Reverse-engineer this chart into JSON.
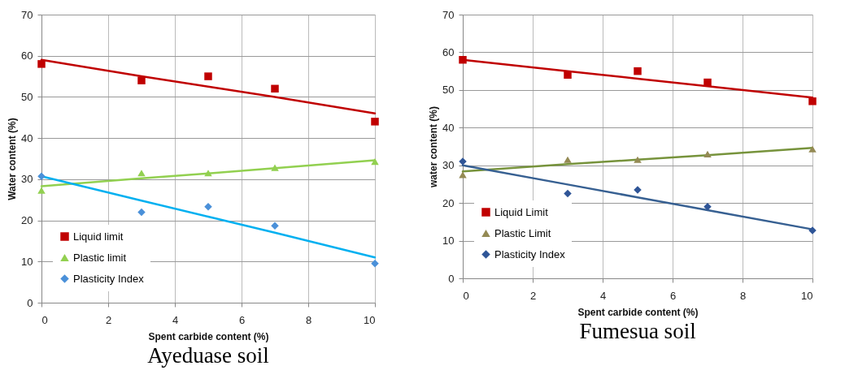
{
  "chart_data": [
    {
      "type": "scatter",
      "title": "Ayeduase soil",
      "xlabel": "Spent carbide content (%)",
      "ylabel": "Water content (%)",
      "x": [
        0,
        3,
        5,
        7,
        10
      ],
      "xlim": [
        0,
        10
      ],
      "xticks": [
        0,
        2,
        4,
        6,
        8,
        10
      ],
      "ylim": [
        0,
        70
      ],
      "yticks": [
        0,
        10,
        20,
        30,
        40,
        50,
        60,
        70
      ],
      "grid": true,
      "legend": "bottom left",
      "series": [
        {
          "name": "Liquid limit",
          "marker": "square",
          "color": "#c00000",
          "values": [
            58,
            54,
            55,
            52,
            44
          ]
        },
        {
          "name": "Plastic limit",
          "marker": "triangle",
          "color": "#92d050",
          "values": [
            27.3,
            31.5,
            31.5,
            32.8,
            34.3
          ]
        },
        {
          "name": "Plasticity Index",
          "marker": "diamond",
          "color": "#4a90d9",
          "values": [
            30.7,
            22,
            23.3,
            18.7,
            9.5
          ]
        },
        {
          "type": "line",
          "marker": "none",
          "color": "#c00000",
          "values": [
            59,
            55,
            52.5,
            50,
            46
          ]
        },
        {
          "type": "line",
          "marker": "none",
          "color": "#92d050",
          "values": [
            28.3,
            30.2,
            31.4,
            32.7,
            34.6
          ]
        },
        {
          "type": "line",
          "marker": "none",
          "color": "#00b0f0",
          "values": [
            30.7,
            24.8,
            20.9,
            17,
            11
          ]
        }
      ]
    },
    {
      "type": "scatter",
      "title": "Fumesua soil",
      "xlabel": "Spent carbide content (%)",
      "ylabel": "water  content (%)",
      "x": [
        0,
        3,
        5,
        7,
        10
      ],
      "xlim": [
        0,
        10
      ],
      "xticks": [
        0,
        2,
        4,
        6,
        8,
        10
      ],
      "ylim": [
        0,
        70
      ],
      "yticks": [
        0,
        10,
        20,
        30,
        40,
        50,
        60,
        70
      ],
      "grid": true,
      "legend": "bottom left",
      "series": [
        {
          "name": "Liquid Limit",
          "marker": "square",
          "color": "#c00000",
          "values": [
            58,
            54,
            55,
            52,
            47
          ]
        },
        {
          "name": "Plastic Limit",
          "marker": "triangle",
          "color": "#948a54",
          "values": [
            27.5,
            31.5,
            31.5,
            33,
            34.3
          ]
        },
        {
          "name": "Plasticity Index",
          "marker": "diamond",
          "color": "#2f5597",
          "values": [
            31,
            22.5,
            23.5,
            19,
            12.7
          ]
        },
        {
          "type": "line",
          "marker": "none",
          "color": "#c00000",
          "values": [
            58,
            55,
            53,
            51,
            48
          ]
        },
        {
          "type": "line",
          "marker": "none",
          "color": "#77933c",
          "values": [
            28.4,
            30.3,
            31.5,
            32.7,
            34.6
          ]
        },
        {
          "type": "line",
          "marker": "none",
          "color": "#376092",
          "values": [
            30,
            24.9,
            21.5,
            18.1,
            13
          ]
        }
      ]
    }
  ]
}
